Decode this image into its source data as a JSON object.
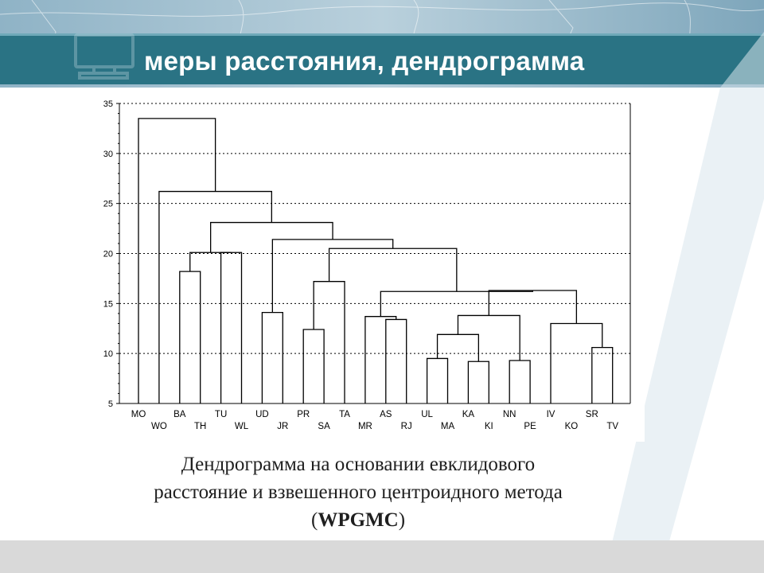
{
  "slide": {
    "title": "меры расстояния, дендрограмма",
    "caption_line1": "Дендрограмма на основании евклидового",
    "caption_line2": "расстояние и взвешенного центроидного метода",
    "caption_open": "(",
    "caption_bold": "WPGMC",
    "caption_close": ")"
  },
  "colors": {
    "header_band": "#2a7384",
    "bottom_band": "#d9d9d9",
    "chart_line": "#000000"
  },
  "chart_data": {
    "type": "dendrogram",
    "ylim": [
      5,
      35
    ],
    "yticks": [
      5,
      10,
      15,
      20,
      25,
      30,
      35
    ],
    "grid": true,
    "leaves": [
      "MO",
      "WO",
      "BA",
      "TH",
      "TU",
      "WL",
      "UD",
      "JR",
      "PR",
      "SA",
      "TA",
      "MR",
      "AS",
      "RJ",
      "UL",
      "MA",
      "KA",
      "KI",
      "NN",
      "PE",
      "IV",
      "KO",
      "SR",
      "TV"
    ],
    "merges": [
      {
        "left": "SR",
        "right": "TV",
        "height": 10.6
      },
      {
        "left": "IV",
        "right": "SR+TV",
        "height": 13.0
      },
      {
        "left": "UL",
        "right": "MA",
        "height": 9.5
      },
      {
        "left": "KA",
        "right": "KI",
        "height": 9.2
      },
      {
        "left": "UL+MA",
        "right": "KA+KI",
        "height": 11.9
      },
      {
        "left": "NN",
        "right": "PE",
        "height": 9.3
      },
      {
        "left": "UL+MA+KA+KI",
        "right": "NN+PE",
        "height": 13.8
      },
      {
        "left": "UL..PE",
        "right": "IV+SR+TV",
        "height": 16.3
      },
      {
        "left": "AS",
        "right": "RJ",
        "height": 13.4
      },
      {
        "left": "MR",
        "right": "AS+RJ",
        "height": 13.7
      },
      {
        "left": "MR+AS+RJ",
        "right": "UL..TV",
        "height": 16.2
      },
      {
        "left": "PR",
        "right": "SA",
        "height": 12.4
      },
      {
        "left": "PR+SA",
        "right": "TA",
        "height": 17.2
      },
      {
        "left": "PR+SA+TA",
        "right": "MR..TV",
        "height": 20.5
      },
      {
        "left": "UD",
        "right": "JR",
        "height": 14.1
      },
      {
        "left": "UD+JR",
        "right": "PR..TV",
        "height": 21.4
      },
      {
        "left": "BA",
        "right": "TH",
        "height": 18.2
      },
      {
        "left": "TU",
        "right": "WL",
        "height": 20.1
      },
      {
        "left": "BA+TH",
        "right": "TU+WL",
        "height": 20.1
      },
      {
        "left": "BA..WL",
        "right": "UD..TV",
        "height": 23.1
      },
      {
        "left": "WO",
        "right": "BA..TV",
        "height": 26.2
      },
      {
        "left": "MO",
        "right": "WO..TV",
        "height": 33.5
      }
    ]
  }
}
